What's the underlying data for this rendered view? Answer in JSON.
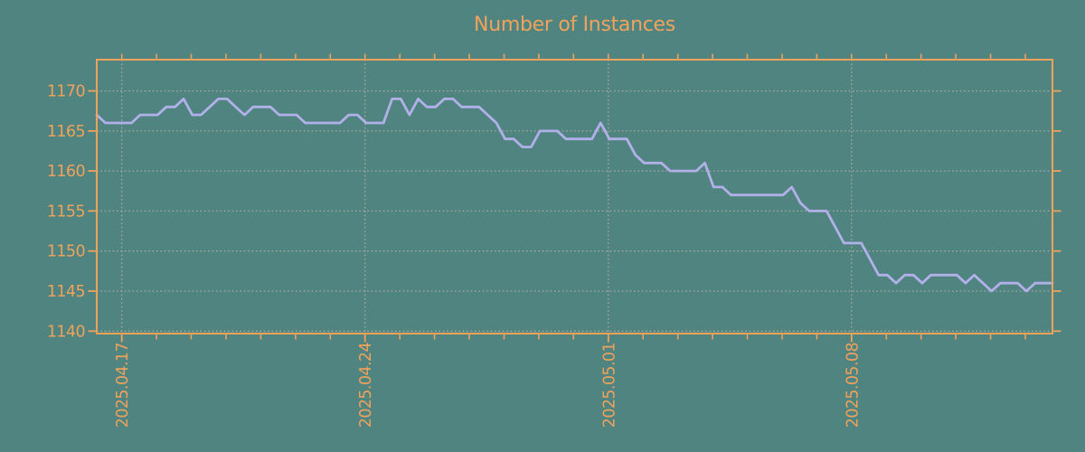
{
  "colors": {
    "background": "#4F8480",
    "line": "#B2B0E8",
    "axis": "#EFA25C",
    "grid": "#B5ADA8"
  },
  "chart_data": {
    "type": "line",
    "title": "Number of Instances",
    "xlabel": "",
    "ylabel": "",
    "legend": "none",
    "grid": "dotted",
    "ylim": [
      1139.7,
      1173.9
    ],
    "y_ticks": [
      1140,
      1145,
      1150,
      1155,
      1160,
      1165,
      1170
    ],
    "xlim_days": [
      -0.72,
      26.78
    ],
    "x_ticks": [
      {
        "day": 0,
        "label": "2025.04.17"
      },
      {
        "day": 7,
        "label": "2025.04.24"
      },
      {
        "day": 14,
        "label": "2025.05.01"
      },
      {
        "day": 21,
        "label": "2025.05.08"
      }
    ],
    "x_minor_tick_days": {
      "first": 0,
      "last": 26,
      "step": 1
    },
    "samples_per_day": 4,
    "series": [
      {
        "name": "instances",
        "start_day": -0.72,
        "values": [
          1167,
          1166,
          1166,
          1166,
          1166,
          1167,
          1167,
          1167,
          1168,
          1168,
          1169,
          1167,
          1167,
          1168,
          1169,
          1169,
          1168,
          1167,
          1168,
          1168,
          1168,
          1167,
          1167,
          1167,
          1166,
          1166,
          1166,
          1166,
          1166,
          1167,
          1167,
          1166,
          1166,
          1166,
          1169,
          1169,
          1167,
          1169,
          1168,
          1168,
          1169,
          1169,
          1168,
          1168,
          1168,
          1167,
          1166,
          1164,
          1164,
          1163,
          1163,
          1165,
          1165,
          1165,
          1164,
          1164,
          1164,
          1164,
          1166,
          1164,
          1164,
          1164,
          1162,
          1161,
          1161,
          1161,
          1160,
          1160,
          1160,
          1160,
          1161,
          1158,
          1158,
          1157,
          1157,
          1157,
          1157,
          1157,
          1157,
          1157,
          1158,
          1156,
          1155,
          1155,
          1155,
          1153,
          1151,
          1151,
          1151,
          1149,
          1147,
          1147,
          1146,
          1147,
          1147,
          1146,
          1147,
          1147,
          1147,
          1147,
          1146,
          1147,
          1146,
          1145,
          1146,
          1146,
          1146,
          1145,
          1146,
          1146,
          1146
        ]
      }
    ]
  }
}
